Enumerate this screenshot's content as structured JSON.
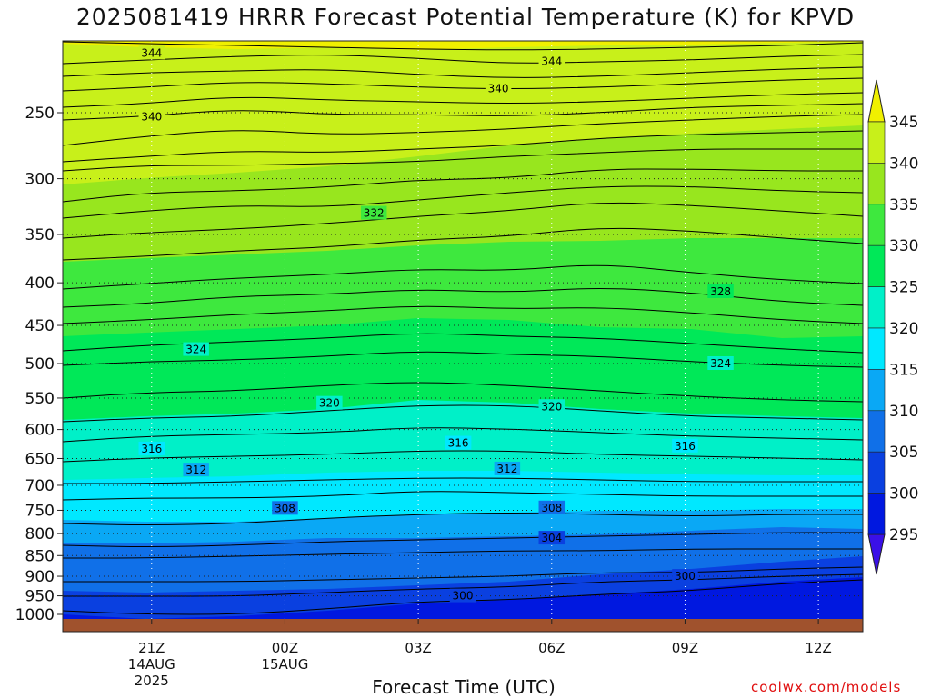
{
  "title": "2025081419 HRRR Forecast Potential Temperature (K) for KPVD",
  "xlabel": "Forecast Time (UTC)",
  "credit": "coolwx.com/models",
  "chart_data": {
    "type": "contour",
    "title": "2025081419 HRRR Forecast Potential Temperature (K) for KPVD",
    "xlabel": "Forecast Time (UTC)",
    "ylabel": "",
    "y_axis": {
      "scale": "log",
      "reversed": true,
      "range_hpa": [
        1000,
        200
      ],
      "ticks": [
        250,
        300,
        350,
        400,
        450,
        500,
        550,
        600,
        650,
        700,
        750,
        800,
        850,
        900,
        950,
        1000
      ]
    },
    "x_ticks": [
      {
        "hour": 2,
        "label": "21Z",
        "sub": [
          "14AUG",
          "2025"
        ]
      },
      {
        "hour": 5,
        "label": "00Z",
        "sub": [
          "15AUG"
        ]
      },
      {
        "hour": 8,
        "label": "03Z",
        "sub": []
      },
      {
        "hour": 11,
        "label": "06Z",
        "sub": []
      },
      {
        "hour": 14,
        "label": "09Z",
        "sub": []
      },
      {
        "hour": 17,
        "label": "12Z",
        "sub": []
      }
    ],
    "x_range_hours": [
      0,
      18
    ],
    "colorbar": {
      "levels": [
        295,
        300,
        305,
        310,
        315,
        320,
        325,
        330,
        335,
        340,
        345
      ],
      "colors": [
        "#3a10e8",
        "#0018e0",
        "#0a40e0",
        "#1070e8",
        "#0aa8f5",
        "#00e8ff",
        "#00f0c8",
        "#00e858",
        "#3ee83e",
        "#98e61e",
        "#c8f01a",
        "#f0f000"
      ],
      "extend": "both"
    },
    "contour_labels": [
      {
        "value": 344,
        "hour": 2.0,
        "p": 212
      },
      {
        "value": 344,
        "hour": 11.0,
        "p": 217
      },
      {
        "value": 340,
        "hour": 9.8,
        "p": 234
      },
      {
        "value": 340,
        "hour": 2.0,
        "p": 253
      },
      {
        "value": 332,
        "hour": 7.0,
        "p": 330
      },
      {
        "value": 328,
        "hour": 14.8,
        "p": 410
      },
      {
        "value": 324,
        "hour": 3.0,
        "p": 481
      },
      {
        "value": 324,
        "hour": 14.8,
        "p": 500
      },
      {
        "value": 320,
        "hour": 6.0,
        "p": 558
      },
      {
        "value": 320,
        "hour": 11.0,
        "p": 563
      },
      {
        "value": 316,
        "hour": 2.0,
        "p": 633
      },
      {
        "value": 316,
        "hour": 8.9,
        "p": 623
      },
      {
        "value": 316,
        "hour": 14.0,
        "p": 628
      },
      {
        "value": 312,
        "hour": 3.0,
        "p": 671
      },
      {
        "value": 312,
        "hour": 10.0,
        "p": 669
      },
      {
        "value": 308,
        "hour": 5.0,
        "p": 746
      },
      {
        "value": 308,
        "hour": 11.0,
        "p": 745
      },
      {
        "value": 304,
        "hour": 11.0,
        "p": 810
      },
      {
        "value": 300,
        "hour": 14.0,
        "p": 900
      },
      {
        "value": 300,
        "hour": 9.0,
        "p": 950
      }
    ],
    "grid": "dotted",
    "terrain_color": "#a0522d"
  }
}
